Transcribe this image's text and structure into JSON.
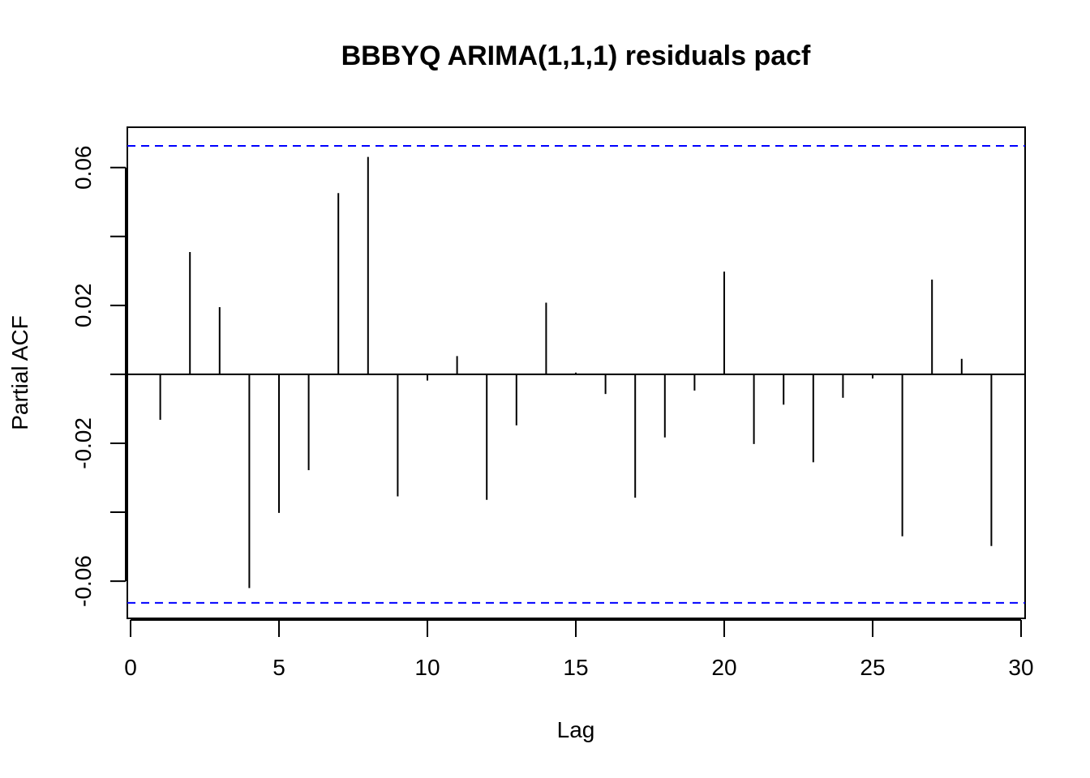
{
  "chart_data": {
    "type": "bar",
    "title": "BBBYQ ARIMA(1,1,1) residuals pacf",
    "xlabel": "Lag",
    "ylabel": "Partial ACF",
    "xlim": [
      0,
      30
    ],
    "ylim": [
      -0.0708,
      0.0717
    ],
    "x_ticks": [
      0,
      5,
      10,
      15,
      20,
      25,
      30
    ],
    "y_ticks": [
      -0.06,
      -0.04,
      -0.02,
      0,
      0.02,
      0.04,
      0.06
    ],
    "y_tick_labels": {
      "-0.06": "-0.06",
      "-0.02": "-0.02",
      "0.02": "0.02",
      "0.06": "0.06"
    },
    "confidence_limit": 0.0663,
    "confidence_color": "#0000ff",
    "bar_color": "#000000",
    "grid": false,
    "x": [
      1,
      2,
      3,
      4,
      5,
      6,
      7,
      8,
      9,
      10,
      11,
      12,
      13,
      14,
      15,
      16,
      17,
      18,
      19,
      20,
      21,
      22,
      23,
      24,
      25,
      26,
      27,
      28,
      29
    ],
    "values": [
      -0.0132,
      0.0355,
      0.0195,
      -0.062,
      -0.0402,
      -0.0278,
      0.0526,
      0.0631,
      -0.0354,
      -0.0018,
      0.0053,
      -0.0364,
      -0.0148,
      0.0208,
      0.0005,
      -0.0057,
      -0.0358,
      -0.0183,
      -0.0047,
      0.0298,
      -0.0202,
      -0.0088,
      -0.0255,
      -0.0068,
      -0.0012,
      -0.047,
      0.0275,
      0.0045,
      -0.0498
    ]
  }
}
